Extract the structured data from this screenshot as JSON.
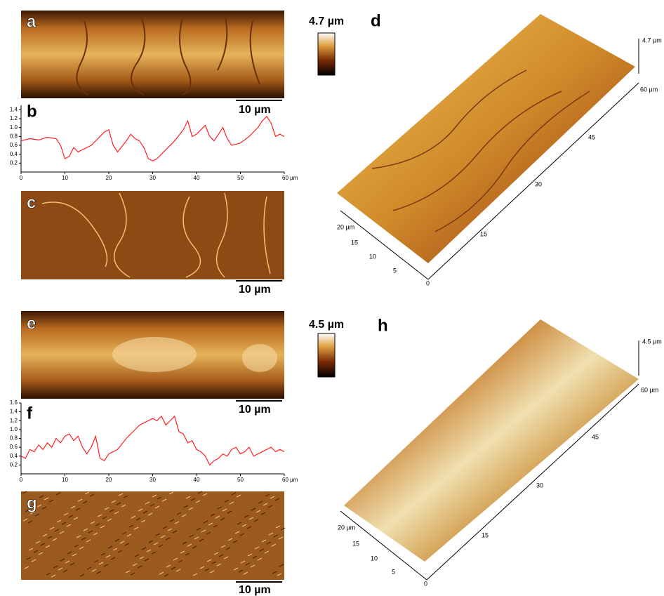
{
  "labels": {
    "a": "a",
    "c": "c",
    "d": "d",
    "e": "e",
    "g": "g",
    "h": "h"
  },
  "scale_bars": [
    "10 µm",
    "10 µm",
    "10 µm",
    "10 µm"
  ],
  "colorbars": [
    "4.7 µm",
    "4.5 µm"
  ],
  "plot3d": [
    {
      "z_label": "4.7 µm",
      "long_ticks": [
        "60 µm",
        "45",
        "30",
        "15",
        "0"
      ],
      "short_ticks": [
        "20 µm",
        "15",
        "10",
        "5"
      ]
    },
    {
      "z_label": "4.5 µm",
      "long_ticks": [
        "60 µm",
        "45",
        "30",
        "15",
        "0"
      ],
      "short_ticks": [
        "20 µm",
        "15",
        "10",
        "5"
      ]
    }
  ],
  "chart_data": [
    {
      "type": "line",
      "title": "b",
      "color": "#ff2020",
      "x": [
        0,
        2,
        4,
        6,
        8,
        9,
        10,
        11,
        12,
        13,
        14,
        16,
        18,
        19,
        20,
        21,
        22,
        24,
        25,
        26,
        27,
        28,
        29,
        30,
        31,
        33,
        35,
        37,
        38,
        39,
        40,
        41,
        42,
        43,
        44,
        45,
        46,
        47,
        48,
        50,
        52,
        54,
        55,
        56,
        57,
        58,
        59,
        60
      ],
      "values": [
        0.7,
        0.75,
        0.72,
        0.78,
        0.75,
        0.6,
        0.3,
        0.35,
        0.55,
        0.45,
        0.5,
        0.6,
        0.8,
        0.9,
        0.95,
        0.6,
        0.45,
        0.7,
        0.85,
        0.75,
        0.7,
        0.55,
        0.3,
        0.25,
        0.3,
        0.5,
        0.7,
        0.95,
        1.15,
        0.8,
        0.85,
        0.95,
        1.05,
        0.8,
        0.7,
        0.85,
        1.0,
        0.75,
        0.6,
        0.65,
        0.8,
        1.0,
        1.15,
        1.25,
        1.1,
        0.8,
        0.85,
        0.8
      ],
      "xlim": [
        0,
        60
      ],
      "xticks": [
        0,
        10,
        20,
        30,
        40,
        50,
        {
          "value": 60,
          "label": "60 µm"
        }
      ],
      "ylim": [
        0,
        1.5
      ],
      "yticks": [
        0.2,
        0.4,
        0.6,
        0.8,
        {
          "value": 1,
          "label": "1.0"
        },
        1.2,
        1.4
      ]
    },
    {
      "type": "line",
      "title": "f",
      "color": "#ff2020",
      "x": [
        0,
        1,
        2,
        3,
        4,
        5,
        6,
        7,
        8,
        9,
        10,
        11,
        12,
        13,
        14,
        15,
        16,
        17,
        18,
        19,
        20,
        22,
        24,
        26,
        27,
        28,
        29,
        30,
        31,
        32,
        33,
        34,
        35,
        36,
        37,
        38,
        39,
        40,
        41,
        42,
        43,
        44,
        45,
        46,
        47,
        48,
        49,
        50,
        51,
        52,
        53,
        54,
        55,
        56,
        57,
        58,
        59,
        60
      ],
      "values": [
        0.4,
        0.35,
        0.55,
        0.5,
        0.65,
        0.55,
        0.7,
        0.6,
        0.8,
        0.7,
        0.85,
        0.9,
        0.75,
        0.85,
        0.6,
        0.45,
        0.6,
        0.85,
        0.35,
        0.3,
        0.45,
        0.55,
        0.8,
        1.0,
        1.1,
        1.15,
        1.2,
        1.25,
        1.2,
        1.3,
        1.1,
        1.2,
        1.3,
        0.95,
        0.9,
        0.7,
        0.75,
        0.55,
        0.5,
        0.4,
        0.2,
        0.3,
        0.35,
        0.45,
        0.4,
        0.55,
        0.6,
        0.45,
        0.5,
        0.6,
        0.4,
        0.45,
        0.5,
        0.55,
        0.6,
        0.5,
        0.55,
        0.5
      ],
      "xlim": [
        0,
        60
      ],
      "xticks": [
        0,
        10,
        20,
        30,
        40,
        50,
        {
          "value": 60,
          "label": "60 µm"
        }
      ],
      "ylim": [
        0,
        1.6
      ],
      "yticks": [
        0.2,
        0.4,
        0.6,
        0.8,
        {
          "value": 1,
          "label": "1.0"
        },
        1.2,
        1.4,
        1.6
      ]
    }
  ]
}
